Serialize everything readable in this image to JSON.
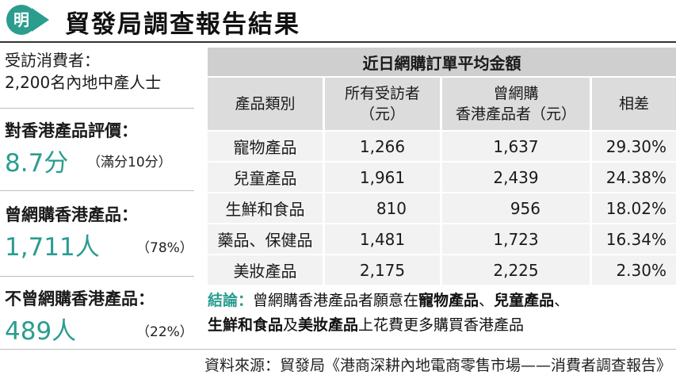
{
  "header": {
    "logo_text": "明",
    "title": "貿發局調查報告結果"
  },
  "left": {
    "respondents_label": "受訪消費者：",
    "respondents_value": "2,200名內地中產人士",
    "rating_label": "對香港產品評價：",
    "rating_value": "8.7分",
    "rating_note": "（滿分10分）",
    "bought_label": "曾網購香港產品：",
    "bought_value": "1,711人",
    "bought_pct": "（78%）",
    "not_bought_label": "不曾網購香港產品：",
    "not_bought_value": "489人",
    "not_bought_pct": "（22%）"
  },
  "table": {
    "title": "近日網購訂單平均金額",
    "headers": {
      "category": "產品類別",
      "all_line1": "所有受訪者",
      "all_line2": "（元）",
      "hk_line1": "曾網購",
      "hk_line2": "香港產品者（元）",
      "diff": "相差"
    },
    "rows": [
      {
        "category": "寵物產品",
        "all": "1,266",
        "hk": "1,637",
        "diff": "29.30%"
      },
      {
        "category": "兒童產品",
        "all": "1,961",
        "hk": "2,439",
        "diff": "24.38%"
      },
      {
        "category": "生鮮和食品",
        "all": "810",
        "hk": "956",
        "diff": "18.02%"
      },
      {
        "category": "藥品、保健品",
        "all": "1,481",
        "hk": "1,723",
        "diff": "16.34%"
      },
      {
        "category": "美妝產品",
        "all": "2,175",
        "hk": "2,225",
        "diff": "2.30%"
      }
    ]
  },
  "conclusion": {
    "label": "結論：",
    "text_1": "曾網購香港產品者願意在",
    "bold_1": "寵物產品",
    "sep_1": "、",
    "bold_2": "兒童產品",
    "sep_2": "、",
    "bold_3": "生鮮和食品",
    "text_2": "及",
    "bold_4": "美妝產品",
    "text_3": "上花費更多購買香港產品"
  },
  "source": "資料來源：貿發局《港商深耕內地電商零售市場——消費者調查報告》",
  "colors": {
    "accent": "#2a9d8f",
    "table_header": "#dcdcdc",
    "table_row": "#f2f2f2"
  }
}
